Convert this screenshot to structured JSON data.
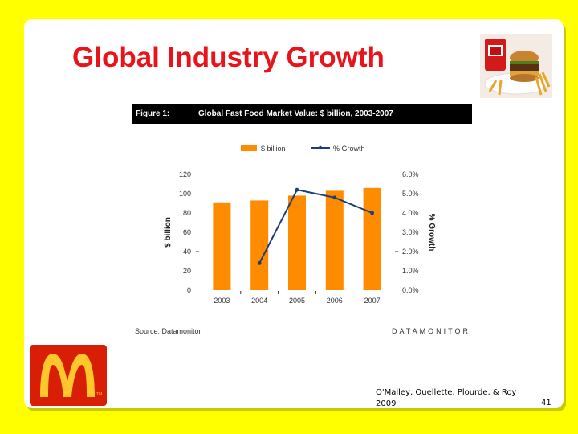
{
  "slide": {
    "title": "Global Industry Growth",
    "citation": "O'Malley, Ouellette, Plourde, & Roy 2009",
    "page_number": "41",
    "logo_trademark": "TM"
  },
  "figure": {
    "label": "Figure 1:",
    "title": "Global Fast Food Market Value: $ billion, 2003-2007",
    "source": "Source: Datamonitor",
    "brand": "DATAMONITOR"
  },
  "chart_data": {
    "type": "bar",
    "categories": [
      "2003",
      "2004",
      "2005",
      "2006",
      "2007"
    ],
    "series": [
      {
        "name": "$ billion",
        "type": "bar",
        "axis": "left",
        "values": [
          91,
          93,
          98,
          103,
          106
        ],
        "color": "#ff8c00"
      },
      {
        "name": "% Growth",
        "type": "line",
        "axis": "right",
        "values": [
          null,
          1.4,
          5.2,
          4.8,
          4.0
        ],
        "color": "#1f3d7a"
      }
    ],
    "ylabel": "$ billion",
    "y2label": "% Growth",
    "ylim": [
      0,
      120
    ],
    "y2lim": [
      0.0,
      6.0
    ],
    "yticks": [
      "0",
      "20",
      "40",
      "60",
      "80",
      "100",
      "120"
    ],
    "y2ticks": [
      "0.0%",
      "1.0%",
      "2.0%",
      "3.0%",
      "4.0%",
      "5.0%",
      "6.0%"
    ],
    "legend_position": "top",
    "grid": false
  },
  "colors": {
    "background": "#ffff00",
    "title": "#e8141b",
    "bar": "#ff8c00",
    "line": "#1f3d7a"
  }
}
